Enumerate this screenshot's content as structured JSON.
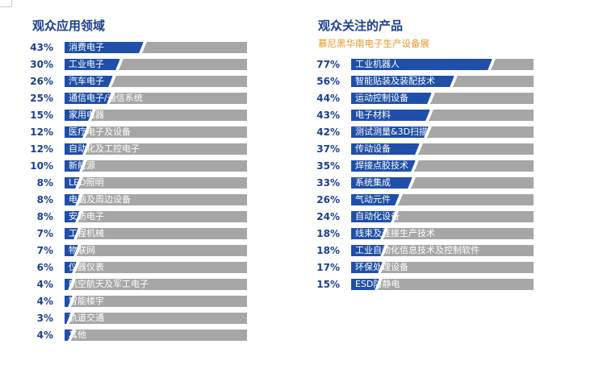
{
  "chart_data": [
    {
      "type": "bar",
      "title": "观众应用领域",
      "subtitle": "",
      "orientation": "horizontal",
      "value_unit": "%",
      "xlim": [
        0,
        100
      ],
      "grid": false,
      "colors": {
        "fill": "#1f4fa8",
        "track": "#a6a6a6",
        "value_text": "#1a3f8f"
      },
      "categories": [
        "消费电子",
        "工业电子",
        "汽车电子",
        "通信电子/通信系统",
        "家用电器",
        "医疗电子及设备",
        "自动化及工控电子",
        "新能源",
        "LED照明",
        "电脑及周边设备",
        "安防电子",
        "工程机械",
        "物联网",
        "仪器仪表",
        "航空航天及军工电子",
        "智能楼宇",
        "轨道交通",
        "其他"
      ],
      "values": [
        43,
        30,
        26,
        25,
        15,
        12,
        12,
        10,
        8,
        8,
        8,
        7,
        7,
        6,
        4,
        4,
        3,
        4
      ],
      "value_labels": [
        "43%",
        "30%",
        "26%",
        "25%",
        "15%",
        "12%",
        "12%",
        "10%",
        "8%",
        "8%",
        "8%",
        "7%",
        "7%",
        "6%",
        "4%",
        "4%",
        "3%",
        "4%"
      ]
    },
    {
      "type": "bar",
      "title": "观众关注的产品",
      "subtitle": "慕尼黑华南电子生产设备展",
      "orientation": "horizontal",
      "value_unit": "%",
      "xlim": [
        0,
        100
      ],
      "grid": false,
      "colors": {
        "fill": "#1f4fa8",
        "track": "#a6a6a6",
        "value_text": "#1a3f8f",
        "subtitle": "#e59a2c"
      },
      "categories": [
        "工业机器人",
        "智能贴装及装配技术",
        "运动控制设备",
        "电子材料",
        "测试测量&3D扫描",
        "传动设备",
        "焊接点胶技术",
        "系统集成",
        "气动元件",
        "自动化设备",
        "线束及连接生产技术",
        "工业自动化信息技术及控制软件",
        "环保处理设备",
        "ESD防静电"
      ],
      "values": [
        77,
        56,
        44,
        43,
        42,
        37,
        35,
        33,
        26,
        24,
        18,
        18,
        17,
        15
      ],
      "value_labels": [
        "77%",
        "56%",
        "44%",
        "43%",
        "42%",
        "37%",
        "35%",
        "33%",
        "26%",
        "24%",
        "18%",
        "18%",
        "17%",
        "15%"
      ]
    }
  ]
}
